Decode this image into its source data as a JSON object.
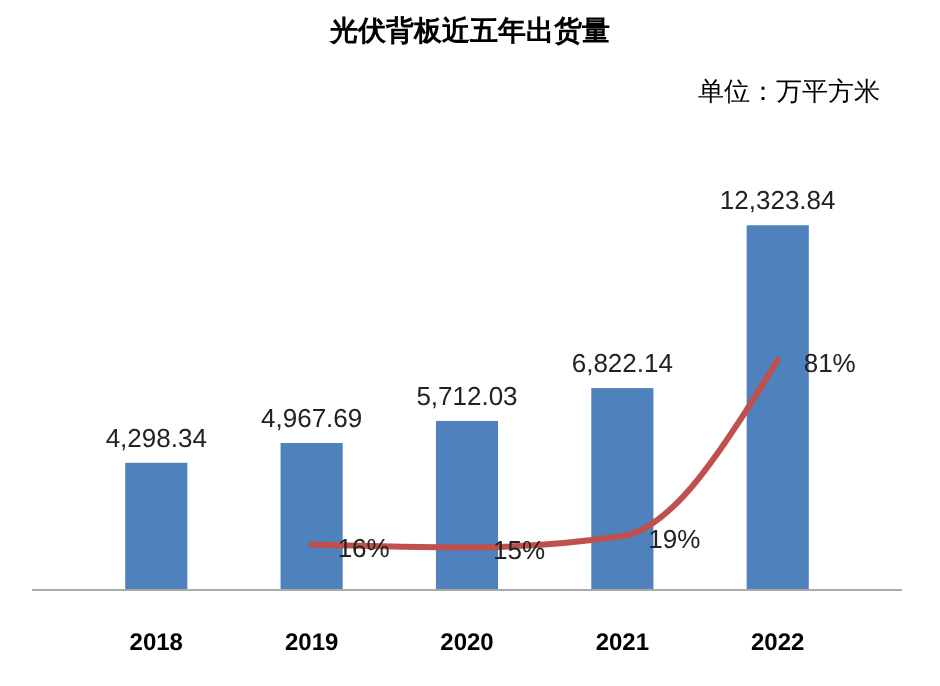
{
  "chart_data": {
    "type": "bar",
    "title": "光伏背板近五年出货量",
    "subtitle": "单位：万平方米",
    "categories": [
      "2018",
      "2019",
      "2020",
      "2021",
      "2022"
    ],
    "tick_labels": "x",
    "series": [
      {
        "color": "#4f81bd",
        "values": [
          4298.34,
          4967.69,
          5712.03,
          6822.14,
          12323.84
        ],
        "value_labels": [
          "4,298.34",
          "4,967.69",
          "5,712.03",
          "6,822.14",
          "12,323.84"
        ]
      },
      {
        "type": "line",
        "axis": "y2",
        "color": "#c0504d",
        "values": [
          null,
          16,
          15,
          19,
          81
        ],
        "value_labels": [
          null,
          "16%",
          "15%",
          "19%",
          "81%"
        ]
      }
    ]
  }
}
